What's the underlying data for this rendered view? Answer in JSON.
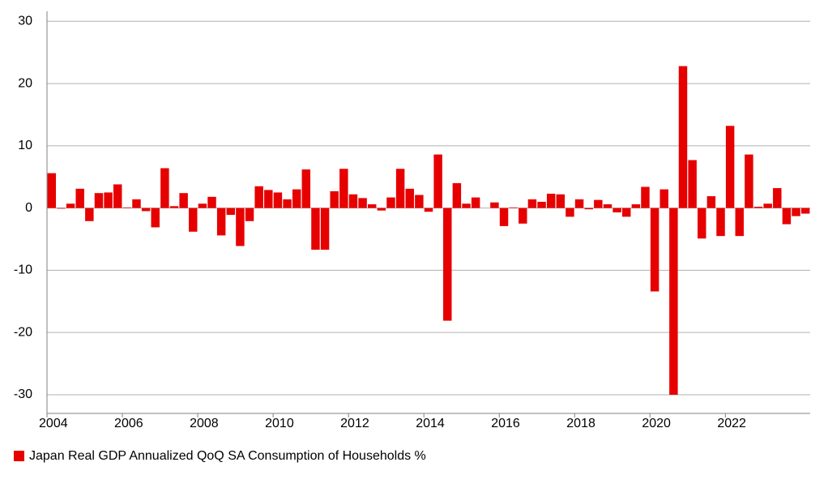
{
  "chart_data": {
    "type": "bar",
    "categories": [
      "2004",
      null,
      null,
      null,
      null,
      null,
      null,
      null,
      "2006",
      null,
      null,
      null,
      null,
      null,
      null,
      null,
      "2008",
      null,
      null,
      null,
      null,
      null,
      null,
      null,
      "2010",
      null,
      null,
      null,
      null,
      null,
      null,
      null,
      "2012",
      null,
      null,
      null,
      null,
      null,
      null,
      null,
      "2014",
      null,
      null,
      null,
      null,
      null,
      null,
      null,
      "2016",
      null,
      null,
      null,
      null,
      null,
      null,
      null,
      "2018",
      null,
      null,
      null,
      null,
      null,
      null,
      null,
      "2020",
      null,
      null,
      null,
      null,
      null,
      null,
      null,
      "2022",
      null,
      null,
      null,
      null,
      null,
      null,
      null,
      null
    ],
    "series": [
      {
        "name": "Japan Real GDP Annualized QoQ SA Consumption of Households %",
        "color": "#e60000",
        "values": [
          5.6,
          -0.1,
          0.7,
          3.1,
          -2.1,
          2.4,
          2.5,
          3.8,
          0.1,
          1.4,
          -0.5,
          -3.1,
          6.4,
          0.3,
          2.4,
          -3.8,
          0.7,
          1.8,
          -4.4,
          -1.1,
          -6.1,
          -2.1,
          3.5,
          2.9,
          2.5,
          1.4,
          3.0,
          6.2,
          -6.7,
          -6.7,
          2.7,
          6.3,
          2.2,
          1.6,
          0.6,
          -0.4,
          1.7,
          6.3,
          3.1,
          2.1,
          -0.6,
          8.6,
          -18.1,
          4.0,
          0.7,
          1.7,
          0.0,
          0.9,
          -2.9,
          0.1,
          -2.5,
          1.4,
          1.0,
          2.3,
          2.2,
          -1.4,
          1.4,
          -0.2,
          1.3,
          0.6,
          -0.7,
          -1.4,
          0.6,
          3.4,
          -13.4,
          3.0,
          -30,
          22.8,
          7.7,
          -4.9,
          1.9,
          -4.5,
          13.2,
          -4.5,
          8.6,
          0.2,
          0.7,
          3.2,
          -2.6,
          -1.3,
          -0.9
        ]
      }
    ],
    "ylim": [
      -33,
      31.6
    ],
    "yticks": [
      -30,
      -20,
      -10,
      0,
      10,
      20,
      30
    ],
    "grid": true
  }
}
